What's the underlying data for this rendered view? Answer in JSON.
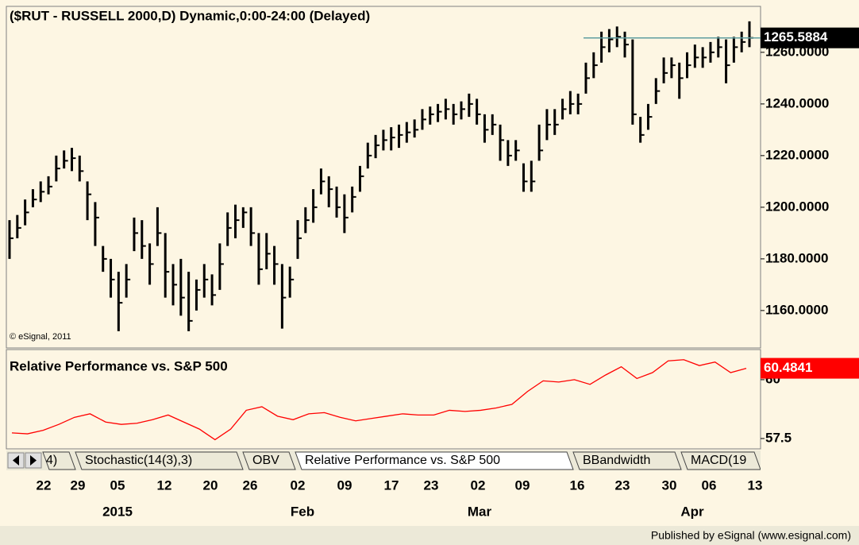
{
  "chart_data": {
    "type": "ohlc",
    "title": "($RUT - RUSSELL 2000,D) Dynamic,0:00-24:00 (Delayed)",
    "copyright": "© eSignal, 2011",
    "footer": "Published by eSignal (www.esignal.com)",
    "color": "#000000",
    "high": [
      1195,
      1197,
      1203,
      1207,
      1210,
      1212,
      1220,
      1222,
      1223,
      1220,
      1210,
      1202,
      1185,
      1180,
      1175,
      1178,
      1196,
      1195,
      1186,
      1200,
      1190,
      1178,
      1180,
      1175,
      1172,
      1178,
      1174,
      1186,
      1198,
      1201,
      1200,
      1200,
      1190,
      1190,
      1185,
      1178,
      1177,
      1195,
      1200,
      1207,
      1215,
      1212,
      1208,
      1205,
      1208,
      1216,
      1225,
      1228,
      1230,
      1231,
      1232,
      1233,
      1234,
      1238,
      1239,
      1240,
      1242,
      1240,
      1241,
      1244,
      1242,
      1236,
      1236,
      1232,
      1226,
      1226,
      1217,
      1218,
      1232,
      1238,
      1238,
      1242,
      1245,
      1244,
      1256,
      1260,
      1268,
      1269,
      1270,
      1268,
      1265,
      1235,
      1240,
      1250,
      1258,
      1258,
      1256,
      1260,
      1263,
      1262,
      1264,
      1266,
      1265,
      1266,
      1268,
      1272
    ],
    "low": [
      1180,
      1188,
      1193,
      1200,
      1202,
      1205,
      1210,
      1215,
      1214,
      1210,
      1195,
      1185,
      1175,
      1165,
      1152,
      1165,
      1183,
      1180,
      1170,
      1185,
      1165,
      1162,
      1158,
      1152,
      1160,
      1165,
      1162,
      1168,
      1185,
      1188,
      1192,
      1185,
      1170,
      1176,
      1170,
      1153,
      1165,
      1180,
      1190,
      1194,
      1205,
      1200,
      1196,
      1190,
      1198,
      1206,
      1215,
      1219,
      1222,
      1222,
      1223,
      1225,
      1227,
      1230,
      1232,
      1233,
      1234,
      1232,
      1234,
      1235,
      1232,
      1225,
      1228,
      1218,
      1216,
      1218,
      1206,
      1206,
      1218,
      1226,
      1228,
      1234,
      1236,
      1236,
      1244,
      1250,
      1256,
      1260,
      1262,
      1258,
      1232,
      1225,
      1230,
      1240,
      1248,
      1250,
      1242,
      1250,
      1254,
      1254,
      1256,
      1258,
      1248,
      1256,
      1260,
      1262
    ],
    "close": [
      1188,
      1192,
      1198,
      1203,
      1206,
      1208,
      1215,
      1218,
      1219,
      1214,
      1205,
      1196,
      1180,
      1172,
      1163,
      1172,
      1190,
      1185,
      1178,
      1190,
      1175,
      1170,
      1165,
      1156,
      1168,
      1172,
      1166,
      1178,
      1192,
      1195,
      1198,
      1190,
      1176,
      1182,
      1178,
      1165,
      1172,
      1188,
      1195,
      1200,
      1210,
      1207,
      1200,
      1196,
      1204,
      1212,
      1220,
      1224,
      1226,
      1227,
      1228,
      1229,
      1230,
      1234,
      1236,
      1237,
      1238,
      1236,
      1238,
      1240,
      1236,
      1230,
      1232,
      1226,
      1220,
      1222,
      1210,
      1210,
      1222,
      1232,
      1232,
      1238,
      1240,
      1240,
      1250,
      1255,
      1262,
      1265,
      1266,
      1263,
      1236,
      1228,
      1235,
      1245,
      1252,
      1255,
      1250,
      1255,
      1258,
      1258,
      1260,
      1262,
      1255,
      1262,
      1264,
      1265.5884
    ],
    "ylim": [
      1145.5,
      1277.8
    ],
    "yticks": [
      {
        "value": 1160,
        "label": "1160.0000"
      },
      {
        "value": 1180,
        "label": "1180.0000"
      },
      {
        "value": 1200,
        "label": "1200.0000"
      },
      {
        "value": 1220,
        "label": "1220.0000"
      },
      {
        "value": 1240,
        "label": "1240.0000"
      },
      {
        "value": 1260,
        "label": "1260.0000"
      }
    ],
    "last_line_color": "#5f9ea0",
    "indicator": {
      "type": "line",
      "title": "Relative Performance vs. S&P 500",
      "color": "#ff0000",
      "values": [
        57.74,
        57.7,
        57.85,
        58.1,
        58.4,
        58.55,
        58.2,
        58.1,
        58.15,
        58.3,
        58.5,
        58.2,
        57.9,
        57.45,
        57.9,
        58.7,
        58.85,
        58.45,
        58.3,
        58.55,
        58.6,
        58.4,
        58.25,
        58.35,
        58.45,
        58.55,
        58.5,
        58.5,
        58.7,
        58.65,
        58.7,
        58.8,
        58.95,
        59.5,
        59.95,
        59.9,
        60.0,
        59.8,
        60.2,
        60.55,
        60.05,
        60.3,
        60.8,
        60.85,
        60.6,
        60.75,
        60.3,
        60.4841
      ],
      "ylim": [
        57.06,
        61.28
      ],
      "yticks": [
        57.5,
        60
      ]
    },
    "tabs": [
      "4)",
      "Stochastic(14(3),3)",
      "OBV",
      "Relative Performance vs. S&P 500",
      "BBandwidth",
      "MACD(19"
    ],
    "x_day_labels": [
      "22",
      "29",
      "05",
      "12",
      "20",
      "26",
      "02",
      "09",
      "17",
      "23",
      "02",
      "09",
      "16",
      "23",
      "30",
      "06",
      "13"
    ],
    "x_month_labels": [
      "2015",
      "Feb",
      "Mar",
      "Apr"
    ]
  }
}
